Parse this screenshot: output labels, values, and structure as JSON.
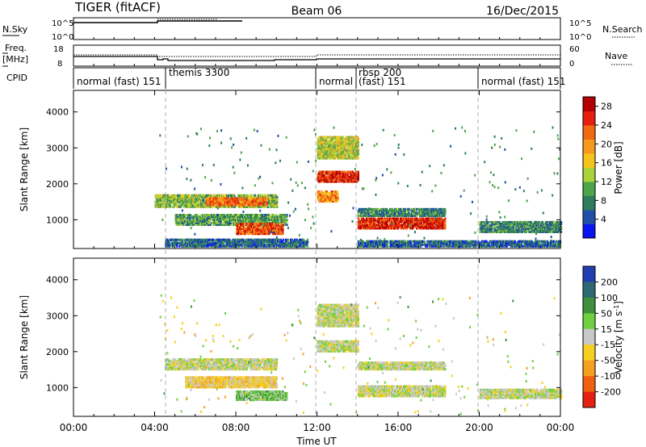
{
  "header": {
    "radar": "TIGER (fitACF)",
    "beam": "Beam 06",
    "date": "16/Dec/2015"
  },
  "panels": {
    "nsky": {
      "left_label": "N.Sky",
      "right_label": "N.Search",
      "ticks": [
        "10^5",
        "10^0"
      ]
    },
    "freq": {
      "left_label_1": "Freq.",
      "left_label_2": "[MHz]",
      "left_ticks": [
        "18",
        "8"
      ],
      "right_label": "Nave",
      "right_ticks": [
        "60",
        "0"
      ]
    },
    "cpid": {
      "label": "CPID",
      "segments": [
        {
          "text": "normal (fast) 151",
          "start_h": 0,
          "end_h": 4.3
        },
        {
          "text": "themis 3300",
          "start_h": 4.3,
          "end_h": 12
        },
        {
          "text": "normal",
          "start_h": 12,
          "end_h": 14
        },
        {
          "text": "rbsp 200",
          "start_h": 14,
          "end_h": 14
        },
        {
          "text": "(fast) 151",
          "start_h": 14,
          "end_h": 20
        },
        {
          "text": "normal (fast) 151",
          "start_h": 20,
          "end_h": 24
        }
      ]
    }
  },
  "chart_data": [
    {
      "type": "heatmap",
      "name": "power",
      "ylabel": "Slant Range [km]",
      "ylim": [
        200,
        4600
      ],
      "yticks": [
        1000,
        2000,
        3000,
        4000
      ],
      "xlim": [
        0,
        24
      ],
      "colorbar": {
        "label": "Power [dB]",
        "ticks": [
          4,
          8,
          12,
          16,
          20,
          24,
          28
        ],
        "range": [
          0,
          30
        ],
        "colors": [
          "#0a14f0",
          "#1f4fa8",
          "#2e7d5c",
          "#4fa34a",
          "#a9d13a",
          "#f5c51e",
          "#f59a1e",
          "#f06a14",
          "#e61e0e",
          "#b30000"
        ]
      },
      "echo_bands": [
        {
          "x0": 4.0,
          "x1": 10.0,
          "r0": 1350,
          "r1": 1700,
          "v": 12
        },
        {
          "x0": 6.5,
          "x1": 9.5,
          "r0": 1400,
          "r1": 1600,
          "v": 22
        },
        {
          "x0": 5.0,
          "x1": 10.5,
          "r0": 850,
          "r1": 1150,
          "v": 10
        },
        {
          "x0": 8.0,
          "x1": 10.3,
          "r0": 600,
          "r1": 900,
          "v": 24
        },
        {
          "x0": 4.5,
          "x1": 11.5,
          "r0": 250,
          "r1": 450,
          "v": 6
        },
        {
          "x0": 12.0,
          "x1": 14.0,
          "r0": 2700,
          "r1": 3300,
          "v": 14
        },
        {
          "x0": 12.0,
          "x1": 14.0,
          "r0": 2050,
          "r1": 2350,
          "v": 26
        },
        {
          "x0": 12.0,
          "x1": 13.0,
          "r0": 1500,
          "r1": 1800,
          "v": 20
        },
        {
          "x0": 14.0,
          "x1": 18.3,
          "r0": 750,
          "r1": 1050,
          "v": 26
        },
        {
          "x0": 14.0,
          "x1": 18.3,
          "r0": 1100,
          "r1": 1300,
          "v": 8
        },
        {
          "x0": 14.0,
          "x1": 24.0,
          "r0": 250,
          "r1": 400,
          "v": 6
        },
        {
          "x0": 20.0,
          "x1": 24.0,
          "r0": 650,
          "r1": 950,
          "v": 8
        }
      ]
    },
    {
      "type": "heatmap",
      "name": "velocity",
      "ylabel": "Slant Range [km]",
      "ylim": [
        200,
        4600
      ],
      "yticks": [
        1000,
        2000,
        3000,
        4000
      ],
      "xlim": [
        0,
        24
      ],
      "xticks": [
        "00:00",
        "04:00",
        "08:00",
        "12:00",
        "16:00",
        "20:00",
        "00:00"
      ],
      "xlabel": "Time UT",
      "colorbar": {
        "label": "Velocity [m s^-1]",
        "ticks": [
          200,
          100,
          50,
          15,
          -15,
          -50,
          -100,
          -200
        ],
        "colors": [
          "#1f3fb0",
          "#2f6a72",
          "#3f8f3f",
          "#6fcf3f",
          "#c8c8c8",
          "#f5d020",
          "#f5a020",
          "#f06010",
          "#e62010"
        ]
      },
      "echo_bands": [
        {
          "x0": 4.5,
          "x1": 10.0,
          "r0": 1500,
          "r1": 1800,
          "v": 0
        },
        {
          "x0": 5.5,
          "x1": 10.0,
          "r0": 1000,
          "r1": 1300,
          "v": -30
        },
        {
          "x0": 8.0,
          "x1": 10.5,
          "r0": 650,
          "r1": 900,
          "v": 30
        },
        {
          "x0": 12.0,
          "x1": 14.0,
          "r0": 2000,
          "r1": 2300,
          "v": 0
        },
        {
          "x0": 12.0,
          "x1": 14.0,
          "r0": 2700,
          "r1": 3300,
          "v": 0
        },
        {
          "x0": 14.0,
          "x1": 18.3,
          "r0": 750,
          "r1": 1050,
          "v": 0
        },
        {
          "x0": 14.0,
          "x1": 18.3,
          "r0": 1500,
          "r1": 1700,
          "v": 0
        },
        {
          "x0": 20.0,
          "x1": 24.0,
          "r0": 700,
          "r1": 950,
          "v": 0
        }
      ]
    }
  ]
}
